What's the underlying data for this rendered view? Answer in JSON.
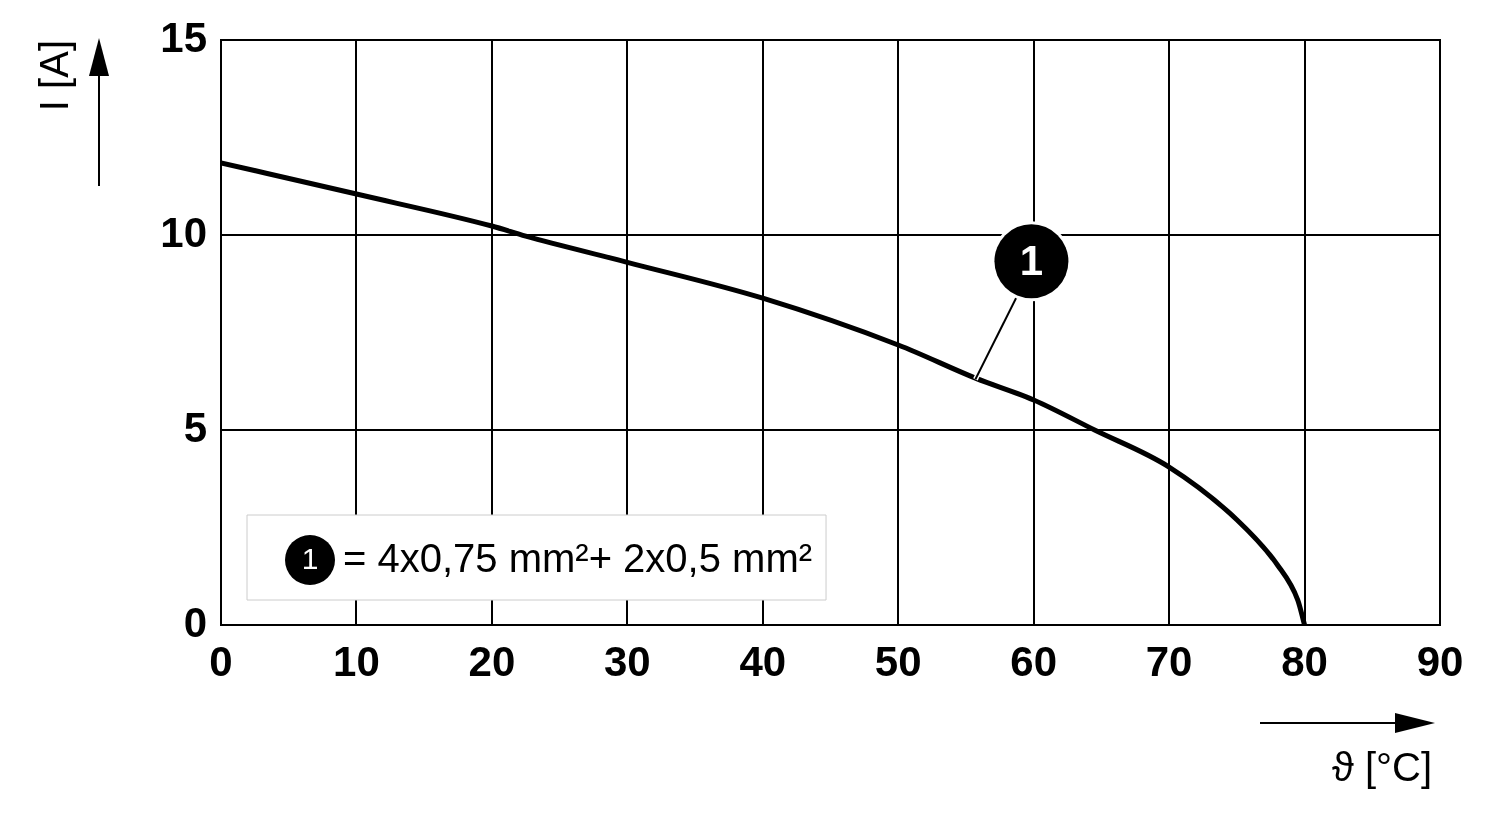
{
  "chart_data": {
    "type": "line",
    "xlabel": "ϑ [°C]",
    "ylabel": "I [A]",
    "x": [
      0,
      10,
      20,
      22.5,
      30,
      40,
      50,
      55.7,
      60,
      64.5,
      70,
      75,
      78,
      79.5,
      80
    ],
    "series": [
      {
        "color": "#000000",
        "values": [
          11.85,
          11.05,
          10.23,
          9.97,
          9.3,
          8.38,
          7.18,
          6.33,
          5.77,
          5.0,
          4.05,
          2.7,
          1.54,
          0.64,
          0
        ]
      }
    ],
    "xlim": [
      0,
      90
    ],
    "xticks": [
      0,
      10,
      20,
      30,
      40,
      50,
      60,
      70,
      80,
      90
    ],
    "ylim": [
      0,
      15
    ],
    "yticks": [
      0,
      5,
      10,
      15
    ],
    "grid": true,
    "marker": "none",
    "line_style": "solid",
    "annotations": [
      {
        "text": "1",
        "x": 55.7,
        "y": 6.3
      },
      "= 4x0,75 mm²+ 2x0,5 mm²"
    ]
  }
}
